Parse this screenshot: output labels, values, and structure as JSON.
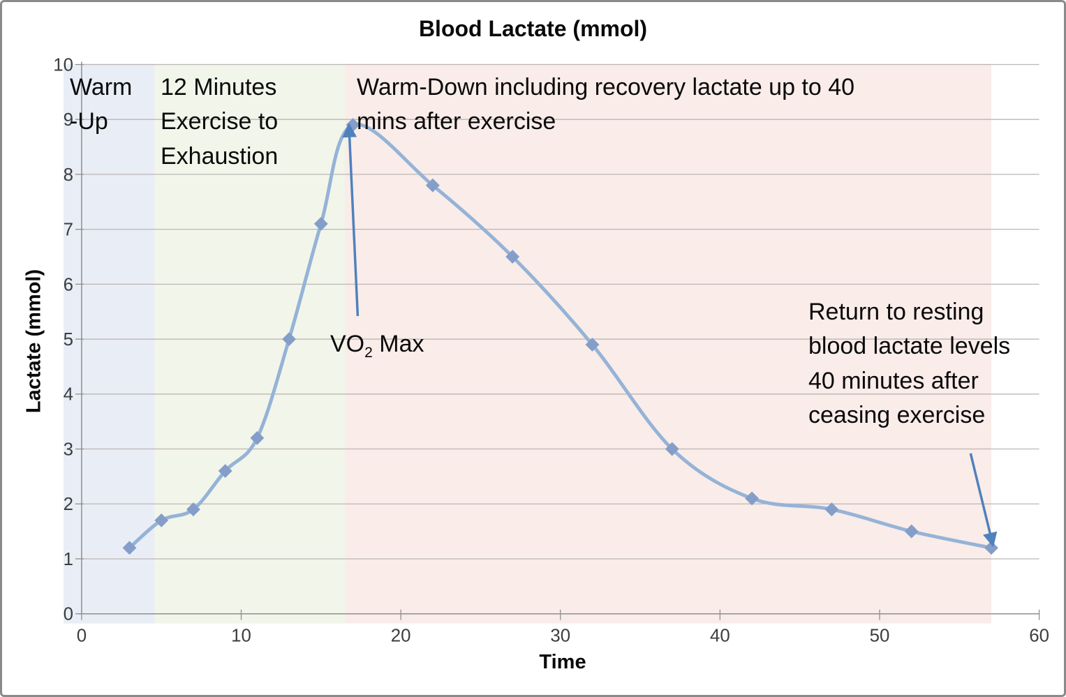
{
  "title": "Blood Lactate (mmol)",
  "chart_data": {
    "type": "line",
    "title": "Blood Lactate (mmol)",
    "xlabel": "Time",
    "ylabel": "Lactate (mmol)",
    "xlim": [
      0,
      60
    ],
    "ylim": [
      0,
      10
    ],
    "x_ticks": [
      0,
      10,
      20,
      30,
      40,
      50,
      60
    ],
    "y_ticks": [
      0,
      1,
      2,
      3,
      4,
      5,
      6,
      7,
      8,
      9,
      10
    ],
    "grid": true,
    "legend": false,
    "smooth": true,
    "series": [
      {
        "name": "Blood Lactate",
        "x": [
          3,
          5,
          7,
          9,
          11,
          13,
          15,
          17,
          22,
          27,
          32,
          37,
          42,
          47,
          52,
          57
        ],
        "values": [
          1.2,
          1.7,
          1.9,
          2.6,
          3.2,
          5.0,
          7.1,
          8.9,
          7.8,
          6.5,
          4.9,
          3.0,
          2.1,
          1.9,
          1.5,
          1.2
        ],
        "line_color": "#95b3d7",
        "marker": "diamond",
        "marker_color": "#849ec9"
      }
    ],
    "regions": [
      {
        "id": "warm-up",
        "label": "Warm\n-Up",
        "x0": -1.13,
        "x1": 4.57,
        "color": "#e9edf6"
      },
      {
        "id": "exercise-to-exhaustion",
        "label": "12 Minutes\nExercise to\nExhaustion",
        "x0": 4.57,
        "x1": 16.5,
        "color": "#f2f5e9"
      },
      {
        "id": "warm-down",
        "label": "Warm-Down including recovery lactate up to 40\nmins after exercise",
        "x0": 16.5,
        "x1": 57.0,
        "color": "#f9ece9"
      }
    ],
    "annotations": [
      {
        "id": "vo2max",
        "text_prefix": "VO",
        "text_sub": "2",
        "text_suffix": " Max",
        "arrow": {
          "from_x": 17.3,
          "from_y": 5.42,
          "to_x": 16.75,
          "to_y": 8.9
        }
      },
      {
        "id": "return-resting",
        "text": "Return to resting\nblood lactate levels\n40 minutes after\nceasing exercise",
        "arrow": {
          "from_x": 55.7,
          "from_y": 2.92,
          "to_x": 57.1,
          "to_y": 1.25
        }
      }
    ],
    "colors": {
      "grid": "#bcb6b6",
      "axis": "#8f8f8f",
      "tick_label": "#3d3d3d",
      "annotation_text": "#0a0a0a",
      "arrow": "#4f81bd"
    }
  }
}
